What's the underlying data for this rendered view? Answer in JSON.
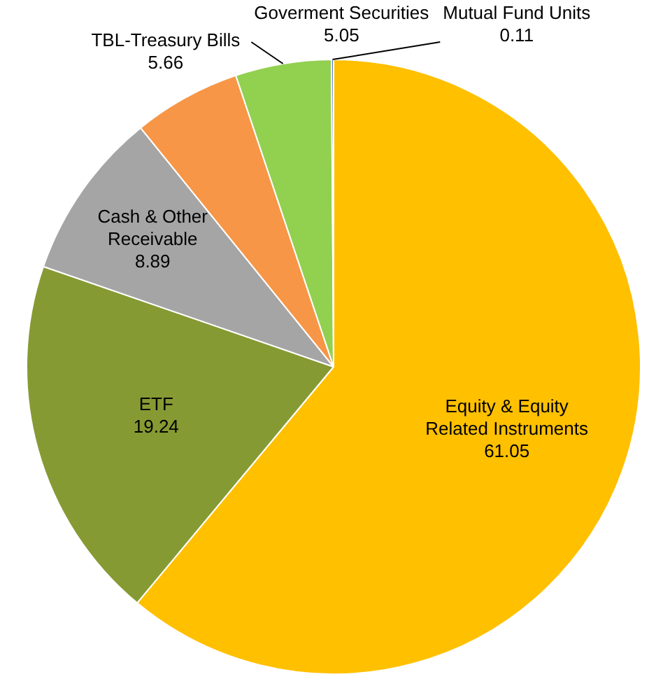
{
  "chart_data": {
    "type": "pie",
    "categories": [
      "Equity & Equity Related Instruments",
      "ETF",
      "Cash & Other Receivable",
      "TBL-Treasury Bills",
      "Goverment Securities",
      "Mutual Fund Units"
    ],
    "values": [
      61.05,
      19.24,
      8.89,
      5.66,
      5.05,
      0.11
    ],
    "colors": [
      "#ffc000",
      "#869a34",
      "#a5a5a5",
      "#f79646",
      "#92d050",
      "#4472c4"
    ],
    "data_labels": true,
    "legend": false
  }
}
